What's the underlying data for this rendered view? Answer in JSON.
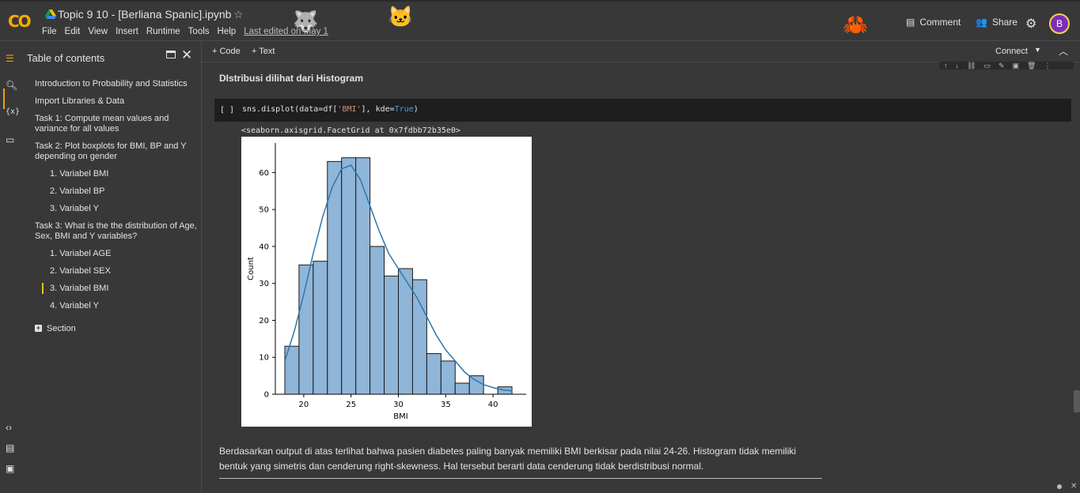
{
  "app": {
    "title": "Topic 9 10 - [Berliana Spanic].ipynb",
    "logo_text": "CO",
    "avatar_letter": "B"
  },
  "menu": {
    "items": [
      "File",
      "Edit",
      "View",
      "Insert",
      "Runtime",
      "Tools",
      "Help"
    ],
    "last_edited": "Last edited on May 1"
  },
  "header_actions": {
    "comment_label": "Comment",
    "share_label": "Share"
  },
  "toc": {
    "header": "Table of contents",
    "items": [
      "Introduction to Probability and Statistics",
      "Import Libraries & Data",
      "Task 1: Compute mean values and variance for all values",
      "Task 2: Plot boxplots for BMI, BP and Y depending on gender",
      "1. Variabel BMI",
      "2. Variabel BP",
      "3. Variabel Y",
      "Task 3: What is the the distribution of Age, Sex, BMI and Y variables?",
      "1. Variabel AGE",
      "2. Variabel SEX",
      "3. Variabel BMI",
      "4. Variabel Y"
    ],
    "section_label": "Section"
  },
  "toolbar": {
    "code_label": "+ Code",
    "text_label": "+ Text",
    "connect_label": "Connect"
  },
  "notebook": {
    "heading": "DIstribusi dilihat dari Histogram",
    "run_bracket": "[ ]",
    "code_prefix": "sns.displot(data=df[",
    "code_string": "'BMI'",
    "code_mid": "], kde=",
    "code_kw": "True",
    "code_suffix": ")",
    "output": "<seaborn.axisgrid.FacetGrid at 0x7fdbb72b35e0>",
    "paragraph": "Berdasarkan output di atas terlihat bahwa pasien diabetes paling banyak memiliki BMI berkisar pada nilai 24-26. Histogram tidak memiliki bentuk yang simetris dan cenderung right-skewness. Hal tersebut berarti data cenderung tidak berdistribusi normal."
  },
  "colors": {
    "bar_fill": "#8fb5d8",
    "bar_edge": "#1a1a1a",
    "kde_line": "#2e77b0",
    "accent": "#f4a100"
  },
  "chart_data": {
    "type": "bar",
    "xlabel": "BMI",
    "ylabel": "Count",
    "bin_edges": [
      18.0,
      19.5,
      21.0,
      22.5,
      24.0,
      25.5,
      27.0,
      28.5,
      30.0,
      31.5,
      33.0,
      34.5,
      36.0,
      37.5,
      39.0,
      40.5,
      42.0
    ],
    "values": [
      13,
      35,
      36,
      63,
      64,
      64,
      40,
      32,
      34,
      31,
      11,
      9,
      3,
      5,
      0,
      2
    ],
    "kde": {
      "x": [
        18.0,
        19.0,
        20.0,
        21.0,
        22.0,
        23.0,
        24.0,
        25.0,
        26.0,
        27.0,
        28.0,
        29.0,
        30.0,
        31.0,
        32.0,
        33.0,
        34.0,
        35.0,
        36.0,
        37.0,
        38.0,
        39.0,
        40.0,
        41.0,
        42.0
      ],
      "y": [
        9,
        17,
        27,
        38,
        48,
        56,
        61,
        62,
        58,
        51,
        44,
        38,
        34,
        30,
        26,
        21,
        16,
        12,
        9,
        6,
        4,
        2.6,
        1.8,
        1.2,
        0.9
      ]
    },
    "xlim": [
      17.0,
      43.5
    ],
    "ylim": [
      0,
      68
    ],
    "xticks": [
      20,
      25,
      30,
      35,
      40
    ],
    "yticks": [
      0,
      10,
      20,
      30,
      40,
      50,
      60
    ]
  }
}
